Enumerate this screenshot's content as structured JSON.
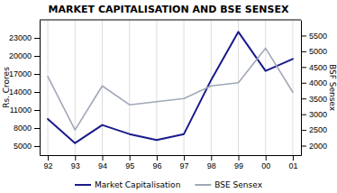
{
  "chart_data": {
    "type": "line",
    "title": "MARKET CAPITALISATION AND BSE SENSEX",
    "categories": [
      "92",
      "93",
      "94",
      "95",
      "96",
      "97",
      "98",
      "99",
      "00",
      "01"
    ],
    "series": [
      {
        "name": "Market Capitalisation",
        "color": "#1a1a8c",
        "values": [
          9500,
          5500,
          8500,
          7000,
          6000,
          7000,
          16000,
          24000,
          17500,
          19500
        ]
      },
      {
        "name": "BSE Sensex",
        "color": "#a0a8b8",
        "axis": "y2",
        "values": [
          4200,
          2500,
          3900,
          3300,
          3400,
          3500,
          3900,
          4000,
          5100,
          3700
        ]
      }
    ],
    "ylabel": "Rs. Crores",
    "y2label": "BSF Sensex",
    "ylim": [
      3500,
      26000
    ],
    "yticks": [
      5000,
      8000,
      11000,
      14000,
      17000,
      20000,
      23000
    ],
    "y2lim": [
      1700,
      6000
    ],
    "y2ticks": [
      2000,
      2500,
      3000,
      3500,
      4000,
      4500,
      5000,
      5500
    ],
    "grid": "x",
    "legend": "bottom"
  }
}
